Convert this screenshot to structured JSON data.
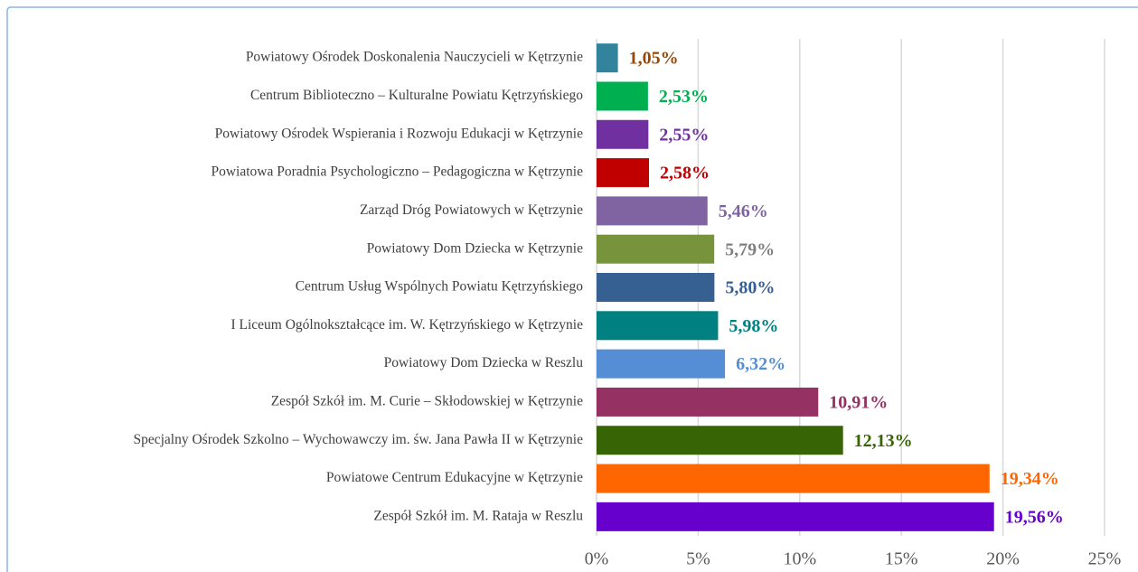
{
  "chart_data": {
    "type": "barh",
    "categories": [
      "Powiatowy Ośrodek Doskonalenia Nauczycieli w Kętrzynie",
      "Centrum Biblioteczno – Kulturalne Powiatu Kętrzyńskiego",
      "Powiatowy Ośrodek Wspierania i Rozwoju Edukacji w Kętrzynie",
      "Powiatowa Poradnia Psychologiczno – Pedagogiczna w Kętrzynie",
      "Zarząd Dróg Powiatowych w Kętrzynie",
      "Powiatowy Dom Dziecka w Kętrzynie",
      "Centrum Usług Wspólnych Powiatu Kętrzyńskiego",
      "I Liceum Ogólnokształcące im. W. Kętrzyńskiego w Kętrzynie",
      "Powiatowy Dom Dziecka w Reszlu",
      "Zespół Szkół im. M. Curie – Skłodowskiej w Kętrzynie",
      "Specjalny Ośrodek Szkolno – Wychowawczy im. św. Jana Pawła II w Kętrzynie",
      "Powiatowe Centrum Edukacyjne w Kętrzynie",
      "Zespół Szkół im. M. Rataja w Reszlu"
    ],
    "values": [
      1.05,
      2.53,
      2.55,
      2.58,
      5.46,
      5.79,
      5.8,
      5.98,
      6.32,
      10.91,
      12.13,
      19.34,
      19.56
    ],
    "value_labels": [
      "1,05%",
      "2,53%",
      "2,55%",
      "2,58%",
      "5,46%",
      "5,79%",
      "5,80%",
      "5,98%",
      "6,32%",
      "10,91%",
      "12,13%",
      "19,34%",
      "19,56%"
    ],
    "colors": [
      "#31849b",
      "#00b050",
      "#7030a0",
      "#c00000",
      "#8064a2",
      "#77933c",
      "#376092",
      "#008080",
      "#558ed5",
      "#953163",
      "#376505",
      "#ff6600",
      "#6600cc"
    ],
    "label_colors": [
      "#984806",
      "#00b050",
      "#7030a0",
      "#c00000",
      "#8064a2",
      "#7f7f7f",
      "#376092",
      "#008080",
      "#558ed5",
      "#953163",
      "#376505",
      "#ff6600",
      "#6600cc"
    ],
    "xlim": [
      0,
      25
    ],
    "xticks": [
      {
        "value": 0,
        "label": "0%"
      },
      {
        "value": 5,
        "label": "5%"
      },
      {
        "value": 10,
        "label": "10%"
      },
      {
        "value": 15,
        "label": "15%"
      },
      {
        "value": 20,
        "label": "20%"
      },
      {
        "value": 25,
        "label": "25%"
      }
    ],
    "grid": true
  }
}
